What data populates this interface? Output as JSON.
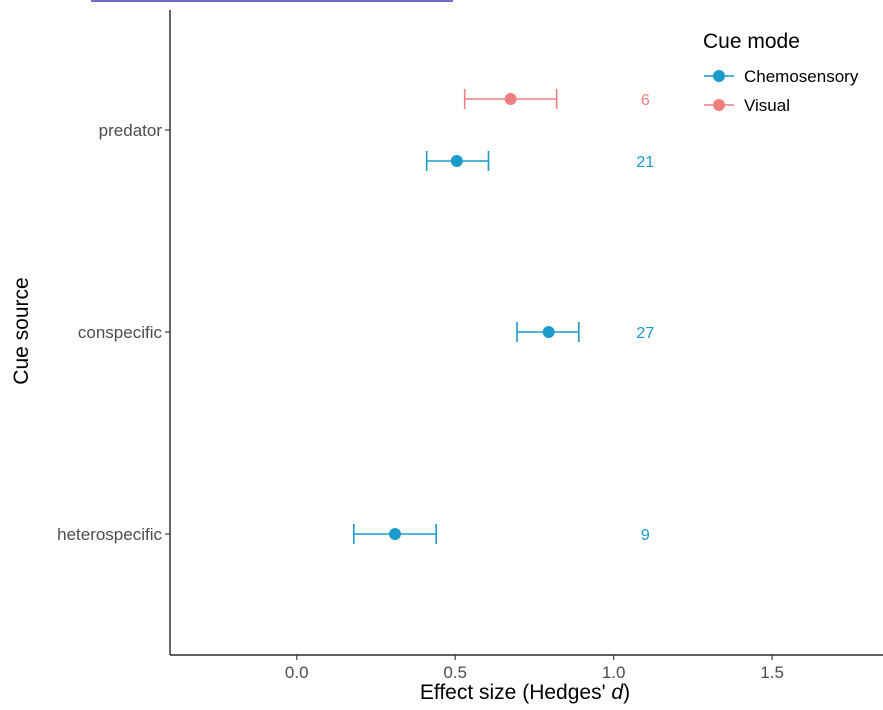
{
  "chart_data": {
    "type": "scatter",
    "subtype": "forest-plot-horizontal-errorbars",
    "xlabel_prefix": "Effect size (Hedges' ",
    "xlabel_italic": "d",
    "xlabel_suffix": ")",
    "ylabel": "Cue source",
    "xlim": [
      -0.4,
      1.85
    ],
    "xticks": [
      0.0,
      0.5,
      1.0,
      1.5
    ],
    "xtick_labels": [
      "0.0",
      "0.5",
      "1.0",
      "1.5"
    ],
    "categories": [
      "predator",
      "conspecific",
      "heterospecific"
    ],
    "grid": false,
    "legend": {
      "title": "Cue mode",
      "position": "top-right",
      "entries": [
        "Chemosensory",
        "Visual"
      ]
    },
    "series": [
      {
        "name": "Chemosensory",
        "color": "#1A9BC9",
        "points": [
          {
            "category": "predator",
            "x": 0.505,
            "lower": 0.41,
            "upper": 0.605,
            "n": "21"
          },
          {
            "category": "conspecific",
            "x": 0.795,
            "lower": 0.695,
            "upper": 0.89,
            "n": "27"
          },
          {
            "category": "heterospecific",
            "x": 0.31,
            "lower": 0.18,
            "upper": 0.44,
            "n": "9"
          }
        ]
      },
      {
        "name": "Visual",
        "color": "#F08080",
        "points": [
          {
            "category": "predator",
            "x": 0.675,
            "lower": 0.53,
            "upper": 0.82,
            "n": "6"
          }
        ]
      }
    ],
    "n_label_x": 1.1
  }
}
